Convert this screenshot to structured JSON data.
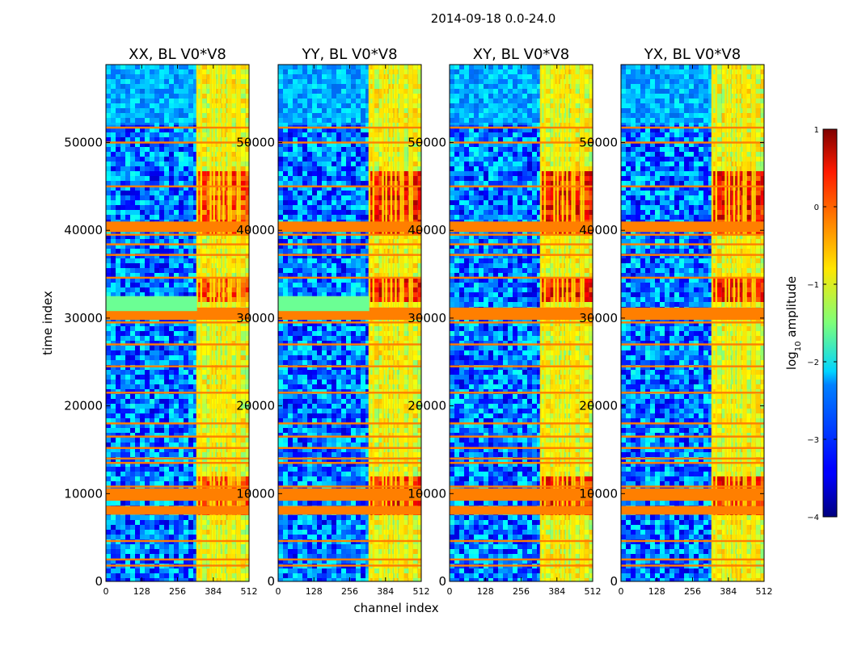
{
  "chart_data": {
    "type": "heatmap",
    "suptitle": "2014-09-18 0.0-24.0",
    "xlabel": "channel index",
    "ylabel": "time index",
    "xlim": [
      0,
      512
    ],
    "ylim": [
      0,
      58880
    ],
    "xticks": [
      0,
      128,
      256,
      384,
      512
    ],
    "yticks": [
      0,
      10000,
      20000,
      30000,
      40000,
      50000
    ],
    "xtick_labels": [
      "0",
      "128",
      "256",
      "384",
      "512"
    ],
    "ytick_labels": [
      "0",
      "10000",
      "20000",
      "30000",
      "40000",
      "50000"
    ],
    "panels": [
      {
        "title": "XX, BL V0*V8",
        "polarization": "XX"
      },
      {
        "title": "YY, BL V0*V8",
        "polarization": "YY"
      },
      {
        "title": "XY, BL V0*V8",
        "polarization": "XY"
      },
      {
        "title": "YX, BL V0*V8",
        "polarization": "YX"
      }
    ],
    "colorbar": {
      "label_prefix": "log",
      "label_sub": "10",
      "label_suffix": " amplitude",
      "range": [
        -4,
        1
      ],
      "ticks": [
        1,
        0,
        -1,
        -2,
        -3,
        -4
      ],
      "tick_labels": [
        "1",
        "0",
        "−1",
        "−2",
        "−3",
        "−4"
      ],
      "colormap": "jet"
    },
    "features": {
      "rfi_channel_range": [
        326,
        512
      ],
      "rfi_channel_boundaries": [
        326,
        340,
        374,
        386,
        404,
        420,
        438,
        446,
        470,
        478
      ],
      "flagged_time_rows": [
        1800,
        2500,
        4600,
        7800,
        8200,
        9300,
        9800,
        10400,
        10800,
        13500,
        14000,
        15200,
        16500,
        18000,
        21500,
        24500,
        27000,
        29500,
        30200,
        31000,
        34600,
        37200,
        38400,
        39500,
        40200,
        40800,
        45000,
        50000,
        51700
      ],
      "background_log_amplitude": -2.8
    }
  }
}
